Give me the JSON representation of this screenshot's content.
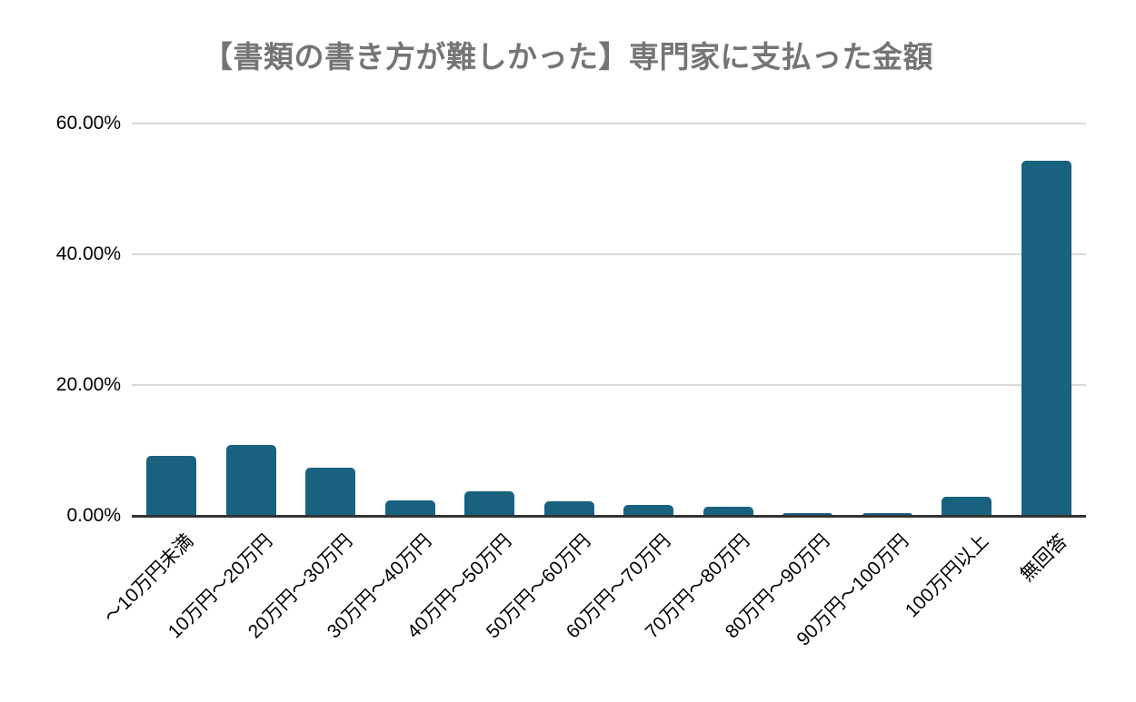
{
  "chart_data": {
    "type": "bar",
    "title": "【書類の書き方が難しかった】専門家に支払った金額",
    "xlabel": "",
    "ylabel": "",
    "categories": [
      "～10万円未満",
      "10万円～20万円",
      "20万円～30万円",
      "30万円～40万円",
      "40万円～50万円",
      "50万円～60万円",
      "60万円～70万円",
      "70万円～80万円",
      "80万円～90万円",
      "90万円～100万円",
      "100万円以上",
      "無回答"
    ],
    "values": [
      9.2,
      10.8,
      7.4,
      2.4,
      3.8,
      2.2,
      1.7,
      1.4,
      0.4,
      0.4,
      2.9,
      54.3
    ],
    "ylim": [
      0,
      60
    ],
    "yticks": [
      {
        "value": 0,
        "label": "0.00%"
      },
      {
        "value": 20,
        "label": "20.00%"
      },
      {
        "value": 40,
        "label": "40.00%"
      },
      {
        "value": 60,
        "label": "60.00%"
      }
    ],
    "grid": true,
    "legend": "none",
    "bar_color": "#19627f",
    "title_color": "#757575",
    "gridline_color": "#d9d9d9",
    "axis_line_color": "#333333",
    "tick_label_color": "#000000"
  }
}
